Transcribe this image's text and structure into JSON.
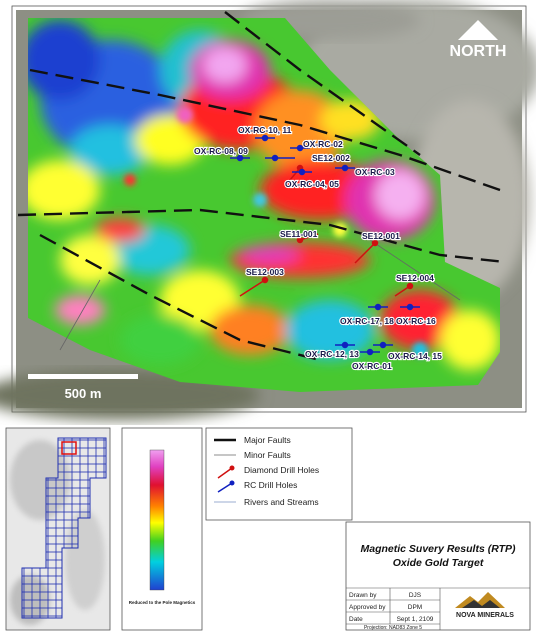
{
  "map": {
    "north_label": "NORTH",
    "scale_label": "500 m",
    "drill_holes": [
      {
        "label": "OX-RC-10, 11"
      },
      {
        "label": "OX-RC-08, 09"
      },
      {
        "label": "OX-RC-02"
      },
      {
        "label": "SE12-002"
      },
      {
        "label": "OX-RC-03"
      },
      {
        "label": "OX-RC-04, 05"
      },
      {
        "label": "SE11-001"
      },
      {
        "label": "SE12-001"
      },
      {
        "label": "SE12-003"
      },
      {
        "label": "SE12-004"
      },
      {
        "label": "OX-RC-17, 18"
      },
      {
        "label": "OX-RC-16"
      },
      {
        "label": "OX-RC-12, 13"
      },
      {
        "label": "OX-RC-01"
      },
      {
        "label": "OX-RC-14, 15"
      }
    ]
  },
  "legend": {
    "items": [
      "Major Faults",
      "Minor Faults",
      "Diamond Drill Holes",
      "RC Drill Holes",
      "Rivers and Streams"
    ]
  },
  "colorbar": {
    "caption": "Reduced to the Pole Magnetics"
  },
  "title_block": {
    "title": "Magnetic Suvery Results (RTP)",
    "subtitle": "Oxide Gold Target",
    "fields": [
      {
        "label": "Drawn by",
        "value": "DJS"
      },
      {
        "label": "Approved by",
        "value": "DPM"
      },
      {
        "label": "Date",
        "value": "Sept 1, 2109"
      }
    ],
    "projection": "Projection: NAD83 Zone 5",
    "logo": "NOVA MINERALS"
  }
}
